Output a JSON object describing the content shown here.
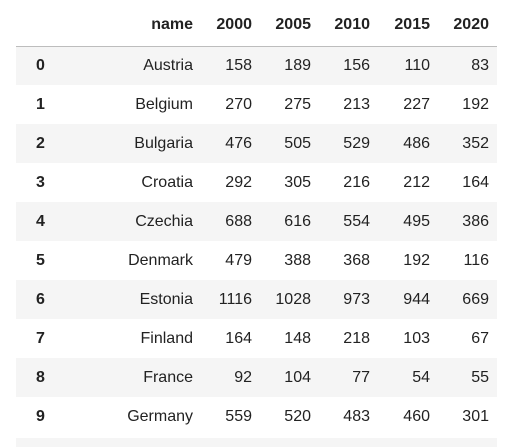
{
  "table": {
    "columns": [
      "name",
      "2000",
      "2005",
      "2010",
      "2015",
      "2020"
    ],
    "rows": [
      [
        0,
        "Austria",
        158,
        189,
        156,
        110,
        83
      ],
      [
        1,
        "Belgium",
        270,
        275,
        213,
        227,
        192
      ],
      [
        2,
        "Bulgaria",
        476,
        505,
        529,
        486,
        352
      ],
      [
        3,
        "Croatia",
        292,
        305,
        216,
        212,
        164
      ],
      [
        4,
        "Czechia",
        688,
        616,
        554,
        495,
        386
      ],
      [
        5,
        "Denmark",
        479,
        388,
        368,
        192,
        116
      ],
      [
        6,
        "Estonia",
        1116,
        1028,
        973,
        944,
        669
      ],
      [
        7,
        "Finland",
        164,
        148,
        218,
        103,
        67
      ],
      [
        8,
        "France",
        92,
        104,
        77,
        54,
        55
      ],
      [
        9,
        "Germany",
        559,
        520,
        483,
        460,
        301
      ]
    ]
  }
}
